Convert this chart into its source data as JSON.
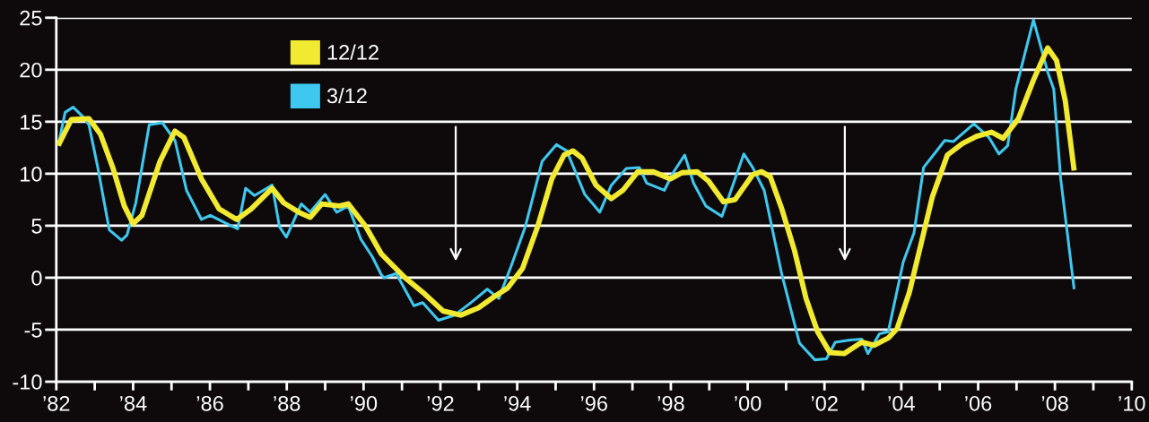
{
  "chart_data": {
    "type": "line",
    "xlim": [
      1982,
      2010
    ],
    "ylim": [
      -10,
      25
    ],
    "xticks": [
      {
        "value": 1982,
        "label": "’82"
      },
      {
        "value": 1983,
        "label": null
      },
      {
        "value": 1984,
        "label": "’84"
      },
      {
        "value": 1985,
        "label": null
      },
      {
        "value": 1986,
        "label": "’86"
      },
      {
        "value": 1987,
        "label": null
      },
      {
        "value": 1988,
        "label": "’88"
      },
      {
        "value": 1989,
        "label": null
      },
      {
        "value": 1990,
        "label": "’90"
      },
      {
        "value": 1991,
        "label": null
      },
      {
        "value": 1992,
        "label": "’92"
      },
      {
        "value": 1993,
        "label": null
      },
      {
        "value": 1994,
        "label": "’94"
      },
      {
        "value": 1995,
        "label": null
      },
      {
        "value": 1996,
        "label": "’96"
      },
      {
        "value": 1997,
        "label": null
      },
      {
        "value": 1998,
        "label": "’98"
      },
      {
        "value": 1999,
        "label": null
      },
      {
        "value": 2000,
        "label": "’00"
      },
      {
        "value": 2001,
        "label": null
      },
      {
        "value": 2002,
        "label": "’02"
      },
      {
        "value": 2003,
        "label": null
      },
      {
        "value": 2004,
        "label": "’04"
      },
      {
        "value": 2005,
        "label": null
      },
      {
        "value": 2006,
        "label": "’06"
      },
      {
        "value": 2007,
        "label": null
      },
      {
        "value": 2008,
        "label": "’08"
      },
      {
        "value": 2009,
        "label": null
      },
      {
        "value": 2010,
        "label": "’10"
      }
    ],
    "yticks": [
      -10,
      -5,
      0,
      5,
      10,
      15,
      20,
      25
    ],
    "grid": "y",
    "legend": "top left",
    "marker": "none",
    "line_style": "solid",
    "series": [
      {
        "name": "12/12",
        "color": "#f2ea30",
        "x": [
          1982.05,
          1982.39,
          1982.85,
          1983.15,
          1983.47,
          1983.77,
          1984.0,
          1984.23,
          1984.7,
          1985.09,
          1985.32,
          1985.78,
          1986.24,
          1986.7,
          1987.07,
          1987.62,
          1987.92,
          1988.31,
          1988.61,
          1988.91,
          1989.37,
          1989.6,
          1990.06,
          1990.46,
          1990.62,
          1991.08,
          1991.54,
          1992.07,
          1992.53,
          1992.99,
          1993.45,
          1993.75,
          1994.14,
          1994.53,
          1994.9,
          1995.22,
          1995.45,
          1995.69,
          1996.05,
          1996.45,
          1996.75,
          1997.14,
          1997.53,
          1997.99,
          1998.29,
          1998.68,
          1998.98,
          1999.37,
          1999.67,
          2000.13,
          2000.36,
          2000.59,
          2000.89,
          2001.22,
          2001.52,
          2001.82,
          2002.14,
          2002.51,
          2002.97,
          2003.29,
          2003.66,
          2003.89,
          2004.21,
          2004.51,
          2004.81,
          2005.2,
          2005.59,
          2005.96,
          2006.35,
          2006.65,
          2007.05,
          2007.44,
          2007.81,
          2008.04,
          2008.27,
          2008.5
        ],
        "values": [
          12.7,
          15.2,
          15.3,
          13.8,
          10.6,
          6.9,
          5.2,
          6.0,
          11.2,
          14.1,
          13.5,
          9.5,
          6.6,
          5.6,
          6.6,
          8.6,
          7.2,
          6.3,
          5.8,
          7.1,
          6.9,
          7.1,
          4.9,
          2.3,
          1.7,
          0,
          -1.4,
          -3.2,
          -3.6,
          -2.9,
          -1.7,
          -1.0,
          0.9,
          4.9,
          9.5,
          11.8,
          12.2,
          11.5,
          8.9,
          7.6,
          8.4,
          10.2,
          10.2,
          9.5,
          10.1,
          10.2,
          9.3,
          7.3,
          7.5,
          9.9,
          10.2,
          9.7,
          6.6,
          2.6,
          -2.0,
          -5.2,
          -7.2,
          -7.3,
          -6.2,
          -6.5,
          -5.8,
          -4.9,
          -1.4,
          3.2,
          7.8,
          11.8,
          12.9,
          13.6,
          14.0,
          13.4,
          15.3,
          19.0,
          22.1,
          20.9,
          17.0,
          10.3
        ]
      },
      {
        "name": "3/12",
        "color": "#3ec8f0",
        "x": [
          1982.05,
          1982.23,
          1982.44,
          1982.69,
          1982.85,
          1983.08,
          1983.38,
          1983.7,
          1983.84,
          1984.07,
          1984.42,
          1984.76,
          1985.09,
          1985.39,
          1985.78,
          1986.01,
          1986.38,
          1986.72,
          1986.93,
          1987.16,
          1987.62,
          1987.81,
          1987.99,
          1988.38,
          1988.61,
          1989.0,
          1989.3,
          1989.6,
          1989.93,
          1990.23,
          1990.46,
          1990.53,
          1990.85,
          1991.31,
          1991.54,
          1991.95,
          1992.37,
          1992.83,
          1993.22,
          1993.52,
          1993.84,
          1994.21,
          1994.65,
          1995.02,
          1995.29,
          1995.76,
          1996.15,
          1996.45,
          1996.84,
          1997.18,
          1997.37,
          1997.83,
          1998.06,
          1998.36,
          1998.59,
          1998.91,
          1999.33,
          1999.9,
          2000.13,
          2000.43,
          2000.89,
          2001.35,
          2001.75,
          2002.05,
          2002.28,
          2002.67,
          2002.97,
          2003.13,
          2003.43,
          2003.66,
          2004.05,
          2004.33,
          2004.58,
          2004.9,
          2005.13,
          2005.36,
          2005.89,
          2006.28,
          2006.54,
          2006.77,
          2006.98,
          2007.44,
          2007.81,
          2007.97,
          2008.15,
          2008.5
        ],
        "values": [
          12.7,
          15.9,
          16.4,
          15.5,
          14.7,
          10.6,
          4.6,
          3.6,
          4.1,
          7.2,
          14.7,
          14.9,
          13.2,
          8.4,
          5.6,
          6.0,
          5.3,
          4.7,
          8.6,
          7.9,
          8.9,
          4.9,
          3.9,
          7.1,
          6.3,
          8.0,
          6.3,
          6.9,
          3.7,
          2.0,
          0.3,
          0,
          0.4,
          -2.7,
          -2.4,
          -4.1,
          -3.6,
          -2.3,
          -1.1,
          -2.0,
          1.1,
          4.9,
          11.2,
          12.8,
          12.2,
          8.0,
          6.3,
          8.9,
          10.5,
          10.6,
          9.1,
          8.4,
          10.1,
          11.8,
          9.1,
          6.9,
          5.9,
          11.9,
          10.6,
          8.4,
          0.3,
          -6.3,
          -7.9,
          -7.8,
          -6.2,
          -6.0,
          -5.9,
          -7.3,
          -5.4,
          -5.2,
          1.5,
          4.3,
          10.6,
          12.1,
          13.2,
          13.1,
          14.8,
          13.5,
          11.9,
          12.7,
          18.1,
          24.8,
          19.8,
          18.1,
          9.5,
          -1.1
        ]
      }
    ]
  }
}
